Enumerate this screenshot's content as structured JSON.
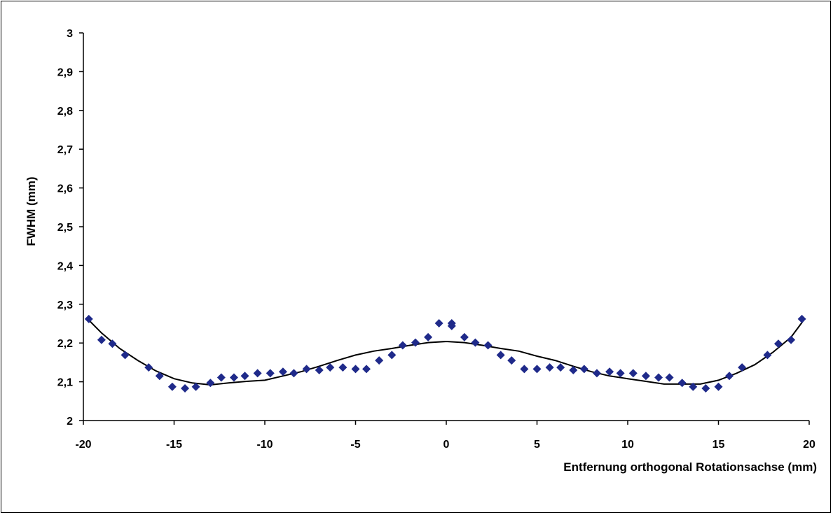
{
  "chart_data": {
    "type": "scatter",
    "title": "",
    "xlabel": "Entfernung orthogonal Rotationsachse (mm)",
    "ylabel": "FWHM  (mm)",
    "xlim": [
      -20,
      20
    ],
    "ylim": [
      2,
      3
    ],
    "x_ticks": [
      -20,
      -15,
      -10,
      -5,
      0,
      5,
      10,
      15,
      20
    ],
    "y_ticks": [
      2,
      2.1,
      2.2,
      2.3,
      2.4,
      2.5,
      2.6,
      2.7,
      2.8,
      2.9,
      3
    ],
    "x_tick_labels": [
      "-20",
      "-15",
      "-10",
      "-5",
      "0",
      "5",
      "10",
      "15",
      "20"
    ],
    "y_tick_labels": [
      "2",
      "2,1",
      "2,2",
      "2,3",
      "2,4",
      "2,5",
      "2,6",
      "2,7",
      "2,8",
      "2,9",
      "3"
    ],
    "grid": false,
    "legend": "none",
    "colors": {
      "markers": "#1f2a8a",
      "line": "#000000"
    },
    "series": [
      {
        "type": "scatter",
        "marker": "diamond",
        "points": [
          [
            -19.7,
            2.262
          ],
          [
            -19.0,
            2.208
          ],
          [
            -18.4,
            2.198
          ],
          [
            -17.7,
            2.169
          ],
          [
            -16.4,
            2.137
          ],
          [
            -15.8,
            2.115
          ],
          [
            -15.1,
            2.087
          ],
          [
            -14.4,
            2.083
          ],
          [
            -13.8,
            2.087
          ],
          [
            -13.0,
            2.097
          ],
          [
            -12.4,
            2.111
          ],
          [
            -11.7,
            2.111
          ],
          [
            -11.1,
            2.115
          ],
          [
            -10.4,
            2.122
          ],
          [
            -9.7,
            2.122
          ],
          [
            -9.0,
            2.126
          ],
          [
            -8.4,
            2.122
          ],
          [
            -7.7,
            2.133
          ],
          [
            -7.0,
            2.13
          ],
          [
            -6.4,
            2.137
          ],
          [
            -5.7,
            2.137
          ],
          [
            -5.0,
            2.133
          ],
          [
            -4.4,
            2.133
          ],
          [
            -3.7,
            2.155
          ],
          [
            -3.0,
            2.169
          ],
          [
            -2.4,
            2.194
          ],
          [
            -1.7,
            2.201
          ],
          [
            -1.0,
            2.215
          ],
          [
            -0.4,
            2.251
          ],
          [
            0.3,
            2.251
          ],
          [
            0.3,
            2.244
          ],
          [
            1.0,
            2.215
          ],
          [
            1.6,
            2.201
          ],
          [
            2.3,
            2.194
          ],
          [
            3.0,
            2.169
          ],
          [
            3.6,
            2.155
          ],
          [
            4.3,
            2.133
          ],
          [
            5.0,
            2.133
          ],
          [
            5.7,
            2.137
          ],
          [
            6.3,
            2.137
          ],
          [
            7.0,
            2.13
          ],
          [
            7.6,
            2.133
          ],
          [
            8.3,
            2.122
          ],
          [
            9.0,
            2.126
          ],
          [
            9.6,
            2.122
          ],
          [
            10.3,
            2.122
          ],
          [
            11.0,
            2.115
          ],
          [
            11.7,
            2.111
          ],
          [
            12.3,
            2.111
          ],
          [
            13.0,
            2.097
          ],
          [
            13.6,
            2.087
          ],
          [
            14.3,
            2.083
          ],
          [
            15.0,
            2.087
          ],
          [
            15.6,
            2.115
          ],
          [
            16.3,
            2.137
          ],
          [
            17.7,
            2.169
          ],
          [
            18.3,
            2.198
          ],
          [
            19.0,
            2.208
          ],
          [
            19.6,
            2.262
          ]
        ]
      },
      {
        "type": "line",
        "points": [
          [
            -19.7,
            2.259
          ],
          [
            -19.0,
            2.226
          ],
          [
            -18.0,
            2.186
          ],
          [
            -17.0,
            2.155
          ],
          [
            -16.0,
            2.128
          ],
          [
            -15.0,
            2.108
          ],
          [
            -14.0,
            2.097
          ],
          [
            -13.0,
            2.092
          ],
          [
            -12.0,
            2.097
          ],
          [
            -11.0,
            2.101
          ],
          [
            -10.0,
            2.104
          ],
          [
            -9.0,
            2.115
          ],
          [
            -8.0,
            2.126
          ],
          [
            -7.0,
            2.14
          ],
          [
            -6.0,
            2.155
          ],
          [
            -5.0,
            2.169
          ],
          [
            -4.0,
            2.179
          ],
          [
            -3.0,
            2.186
          ],
          [
            -2.0,
            2.194
          ],
          [
            -1.0,
            2.201
          ],
          [
            0.0,
            2.204
          ],
          [
            1.0,
            2.201
          ],
          [
            2.0,
            2.194
          ],
          [
            3.0,
            2.186
          ],
          [
            4.0,
            2.179
          ],
          [
            5.0,
            2.166
          ],
          [
            6.0,
            2.155
          ],
          [
            7.0,
            2.14
          ],
          [
            8.0,
            2.126
          ],
          [
            9.0,
            2.115
          ],
          [
            10.0,
            2.108
          ],
          [
            11.0,
            2.101
          ],
          [
            12.0,
            2.094
          ],
          [
            13.0,
            2.094
          ],
          [
            14.0,
            2.094
          ],
          [
            15.0,
            2.104
          ],
          [
            16.0,
            2.122
          ],
          [
            17.0,
            2.144
          ],
          [
            18.0,
            2.176
          ],
          [
            19.0,
            2.215
          ],
          [
            19.7,
            2.259
          ]
        ]
      }
    ]
  }
}
